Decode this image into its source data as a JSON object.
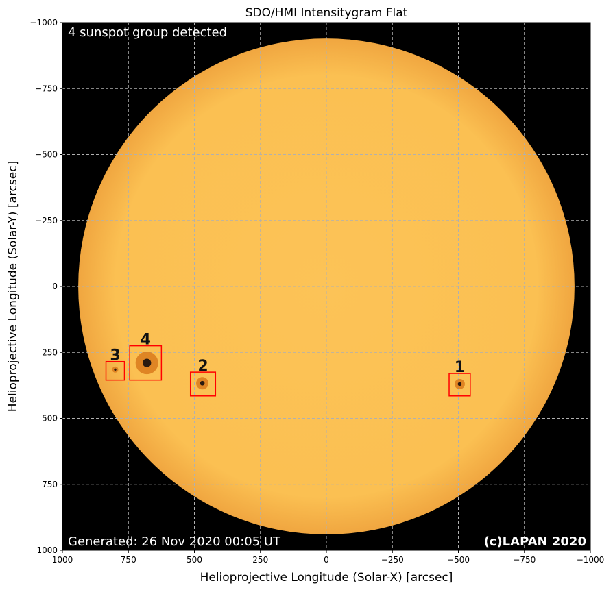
{
  "chart_data": {
    "type": "image",
    "title": "SDO/HMI Intensitygram Flat",
    "xlabel": "Helioprojective Longitude (Solar-X) [arcsec]",
    "ylabel": "Helioprojective Longitude (Solar-Y) [arcsec]",
    "xlim": [
      1000,
      -1000
    ],
    "ylim": [
      -1000,
      1000
    ],
    "x_ticks": [
      1000,
      750,
      500,
      250,
      0,
      -250,
      -500,
      -750,
      -1000
    ],
    "y_ticks": [
      -1000,
      -750,
      -500,
      -250,
      0,
      250,
      500,
      750,
      1000
    ],
    "x_tick_labels": [
      "1000",
      "750",
      "500",
      "250",
      "0",
      "−250",
      "−500",
      "−750",
      "−1000"
    ],
    "y_tick_labels": [
      "−1000",
      "−750",
      "−500",
      "−250",
      "0",
      "250",
      "500",
      "750",
      "1000"
    ],
    "grid": true,
    "solar_radius_arcsec": 940,
    "detection_text": "4 sunspot group detected",
    "generated_text": "Generated: 26 Nov 2020 00:05 UT",
    "copyright_text": "(c)LAPAN 2020",
    "colors": {
      "background": "#000000",
      "sun_disk": "#fcc357",
      "sun_limb": "#f0a640",
      "spot": "#d97a1c",
      "umbra": "#2a1a10",
      "box": "#ff0000",
      "grid": "#b0b0b0"
    },
    "groups": [
      {
        "label": "1",
        "x_range": [
          -465,
          -545
        ],
        "y_range": [
          330,
          415
        ],
        "spots": [
          {
            "x": -505,
            "y": 370,
            "r": 10
          }
        ]
      },
      {
        "label": "2",
        "x_range": [
          515,
          420
        ],
        "y_range": [
          325,
          415
        ],
        "spots": [
          {
            "x": 470,
            "y": 367,
            "r": 12
          }
        ]
      },
      {
        "label": "3",
        "x_range": [
          835,
          765
        ],
        "y_range": [
          285,
          355
        ],
        "spots": [
          {
            "x": 800,
            "y": 315,
            "r": 6
          }
        ]
      },
      {
        "label": "4",
        "x_range": [
          745,
          625
        ],
        "y_range": [
          225,
          355
        ],
        "spots": [
          {
            "x": 680,
            "y": 290,
            "r": 22
          }
        ]
      }
    ]
  }
}
